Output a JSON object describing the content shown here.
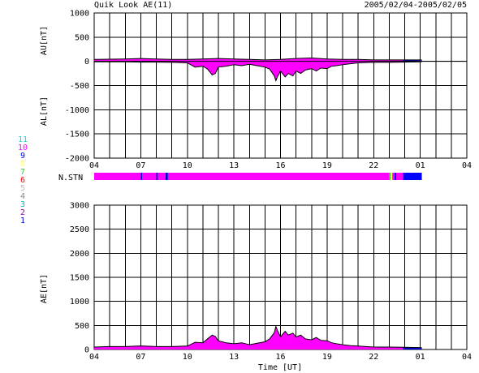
{
  "header": {
    "title": "Quik Look AE(11)",
    "date_range": "2005/02/04-2005/02/05"
  },
  "station_legend": [
    {
      "num": "11",
      "color": "#00e0e0"
    },
    {
      "num": "10",
      "color": "#ff00ff"
    },
    {
      "num": "9",
      "color": "#0000ff"
    },
    {
      "num": "8",
      "color": "#ffff66"
    },
    {
      "num": "7",
      "color": "#33cc33"
    },
    {
      "num": "6",
      "color": "#ff0000"
    },
    {
      "num": "5",
      "color": "#bbbbbb"
    },
    {
      "num": "4",
      "color": "#888888"
    },
    {
      "num": "3",
      "color": "#00bbbb"
    },
    {
      "num": "2",
      "color": "#990099"
    },
    {
      "num": "1",
      "color": "#0000cc"
    }
  ],
  "chart_data": [
    {
      "type": "area",
      "name": "AU/AL",
      "ylabel_upper": "AU[nT]",
      "ylabel_lower": "AL[nT]",
      "ylim": [
        -2000,
        1000
      ],
      "yticks": [
        1000,
        500,
        0,
        -500,
        -1000,
        -1500,
        -2000
      ],
      "xticks": [
        "04",
        "07",
        "10",
        "13",
        "16",
        "19",
        "22",
        "01",
        "04"
      ],
      "x_hours": [
        0,
        3,
        6,
        9,
        12,
        15,
        18,
        21,
        24
      ],
      "colors": {
        "fill": "#ff00ff",
        "fill_end": "#0000cc",
        "line": "#000000"
      },
      "data_end_hour": 21.1,
      "color_switch_hour": 19.9,
      "au": [
        [
          0,
          40
        ],
        [
          1,
          45
        ],
        [
          2,
          50
        ],
        [
          3,
          60
        ],
        [
          4,
          50
        ],
        [
          5,
          40
        ],
        [
          6,
          40
        ],
        [
          7,
          50
        ],
        [
          8,
          60
        ],
        [
          9,
          50
        ],
        [
          10,
          40
        ],
        [
          11,
          30
        ],
        [
          12,
          40
        ],
        [
          13,
          60
        ],
        [
          14,
          70
        ],
        [
          15,
          50
        ],
        [
          16,
          40
        ],
        [
          17,
          40
        ],
        [
          18,
          30
        ],
        [
          19,
          30
        ],
        [
          20,
          30
        ],
        [
          21,
          30
        ],
        [
          21.1,
          30
        ]
      ],
      "al": [
        [
          0,
          -10
        ],
        [
          1,
          -10
        ],
        [
          2,
          -10
        ],
        [
          3,
          -15
        ],
        [
          4,
          -15
        ],
        [
          5,
          -20
        ],
        [
          6,
          -30
        ],
        [
          6.5,
          -120
        ],
        [
          7,
          -100
        ],
        [
          7.3,
          -160
        ],
        [
          7.6,
          -280
        ],
        [
          7.8,
          -250
        ],
        [
          8,
          -120
        ],
        [
          8.5,
          -100
        ],
        [
          9,
          -70
        ],
        [
          9.5,
          -90
        ],
        [
          10,
          -60
        ],
        [
          10.5,
          -90
        ],
        [
          11,
          -120
        ],
        [
          11.3,
          -160
        ],
        [
          11.6,
          -300
        ],
        [
          11.7,
          -400
        ],
        [
          11.8,
          -320
        ],
        [
          12,
          -200
        ],
        [
          12.3,
          -320
        ],
        [
          12.5,
          -250
        ],
        [
          12.8,
          -300
        ],
        [
          13,
          -200
        ],
        [
          13.3,
          -250
        ],
        [
          13.6,
          -180
        ],
        [
          14,
          -150
        ],
        [
          14.3,
          -200
        ],
        [
          14.6,
          -140
        ],
        [
          15,
          -150
        ],
        [
          15.3,
          -100
        ],
        [
          15.6,
          -90
        ],
        [
          16,
          -70
        ],
        [
          16.5,
          -50
        ],
        [
          17,
          -30
        ],
        [
          18,
          -20
        ],
        [
          19,
          -20
        ],
        [
          20,
          -15
        ],
        [
          21,
          -10
        ],
        [
          21.1,
          -10
        ]
      ]
    },
    {
      "type": "bar",
      "name": "N.STN",
      "label": "N.STN",
      "segments": [
        {
          "start": 0,
          "end": 3.0,
          "color": "#ff00ff"
        },
        {
          "start": 3.0,
          "end": 3.1,
          "color": "#0000cc"
        },
        {
          "start": 3.1,
          "end": 4.0,
          "color": "#ff00ff"
        },
        {
          "start": 4.0,
          "end": 4.1,
          "color": "#0000cc"
        },
        {
          "start": 4.1,
          "end": 4.6,
          "color": "#ff00ff"
        },
        {
          "start": 4.6,
          "end": 4.75,
          "color": "#0000cc"
        },
        {
          "start": 4.75,
          "end": 19.0,
          "color": "#ff00ff"
        },
        {
          "start": 19.0,
          "end": 19.1,
          "color": "#33cc33"
        },
        {
          "start": 19.1,
          "end": 19.2,
          "color": "#ffff66"
        },
        {
          "start": 19.2,
          "end": 19.35,
          "color": "#ff00ff"
        },
        {
          "start": 19.35,
          "end": 19.45,
          "color": "#0000ff"
        },
        {
          "start": 19.45,
          "end": 19.9,
          "color": "#ff00ff"
        },
        {
          "start": 19.9,
          "end": 21.1,
          "color": "#0000ff"
        }
      ]
    },
    {
      "type": "area",
      "name": "AE",
      "ylabel": "AE[nT]",
      "xlabel": "Time [UT]",
      "ylim": [
        0,
        3000
      ],
      "yticks": [
        3000,
        2500,
        2000,
        1500,
        1000,
        500,
        0
      ],
      "xticks": [
        "04",
        "07",
        "10",
        "13",
        "16",
        "19",
        "22",
        "01",
        "04"
      ],
      "x_hours": [
        0,
        3,
        6,
        9,
        12,
        15,
        18,
        21,
        24
      ],
      "colors": {
        "fill": "#ff00ff",
        "fill_end": "#0000cc",
        "line": "#000000"
      },
      "data_end_hour": 21.1,
      "color_switch_hour": 19.9,
      "ae": [
        [
          0,
          50
        ],
        [
          1,
          60
        ],
        [
          2,
          60
        ],
        [
          3,
          75
        ],
        [
          4,
          60
        ],
        [
          5,
          60
        ],
        [
          6,
          70
        ],
        [
          6.5,
          150
        ],
        [
          7,
          140
        ],
        [
          7.3,
          220
        ],
        [
          7.6,
          300
        ],
        [
          7.8,
          270
        ],
        [
          8,
          180
        ],
        [
          8.5,
          140
        ],
        [
          9,
          120
        ],
        [
          9.5,
          140
        ],
        [
          10,
          100
        ],
        [
          10.5,
          130
        ],
        [
          11,
          160
        ],
        [
          11.3,
          220
        ],
        [
          11.6,
          350
        ],
        [
          11.7,
          480
        ],
        [
          11.8,
          400
        ],
        [
          12,
          260
        ],
        [
          12.3,
          380
        ],
        [
          12.5,
          300
        ],
        [
          12.8,
          340
        ],
        [
          13,
          260
        ],
        [
          13.3,
          300
        ],
        [
          13.6,
          220
        ],
        [
          14,
          200
        ],
        [
          14.3,
          250
        ],
        [
          14.6,
          190
        ],
        [
          15,
          180
        ],
        [
          15.3,
          140
        ],
        [
          15.6,
          120
        ],
        [
          16,
          100
        ],
        [
          16.5,
          80
        ],
        [
          17,
          70
        ],
        [
          18,
          50
        ],
        [
          19,
          50
        ],
        [
          20,
          45
        ],
        [
          21,
          40
        ],
        [
          21.1,
          40
        ]
      ]
    }
  ]
}
